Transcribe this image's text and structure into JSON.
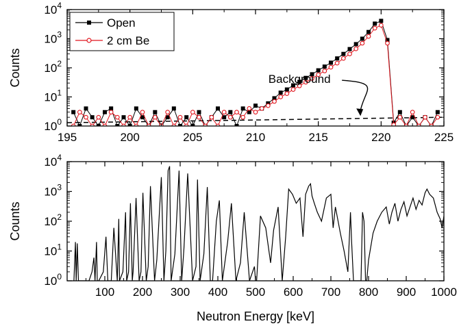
{
  "chart_data": [
    {
      "type": "line",
      "title": "",
      "xlabel": "",
      "ylabel": "Counts",
      "xlim": [
        195,
        225
      ],
      "ylim": [
        1,
        10000
      ],
      "yscale": "log",
      "x_ticks": [
        195,
        200,
        205,
        210,
        215,
        220,
        225
      ],
      "x_tick_labels": [
        "195",
        "200",
        "205",
        "210",
        "215",
        "220",
        "225"
      ],
      "y_ticks": [
        1,
        10,
        100,
        1000,
        10000
      ],
      "y_tick_labels": [
        {
          "base": "10",
          "exp": "0"
        },
        {
          "base": "10",
          "exp": "1"
        },
        {
          "base": "10",
          "exp": "2"
        },
        {
          "base": "10",
          "exp": "3"
        },
        {
          "base": "10",
          "exp": "4"
        }
      ],
      "legend": "top-left",
      "series": [
        {
          "name": "Open",
          "color": "#000000",
          "marker": "square-filled",
          "x": [
            195.5,
            196.0,
            196.5,
            197.0,
            197.5,
            198.0,
            198.5,
            199.0,
            199.5,
            200.0,
            200.5,
            201.0,
            201.5,
            202.0,
            202.5,
            203.0,
            203.5,
            204.0,
            204.5,
            205.0,
            205.5,
            206.0,
            206.5,
            207.0,
            207.5,
            208.0,
            208.5,
            209.0,
            209.5,
            210.0,
            210.5,
            211.0,
            211.5,
            212.0,
            212.5,
            213.0,
            213.5,
            214.0,
            214.5,
            215.0,
            215.5,
            216.0,
            216.5,
            217.0,
            217.5,
            218.0,
            218.5,
            219.0,
            219.5,
            220.0,
            220.5,
            221.0,
            221.5,
            222.0,
            222.5,
            223.0,
            223.5,
            224.0,
            224.5
          ],
          "y": [
            3,
            1,
            4,
            2,
            1,
            3,
            4,
            1,
            2,
            1,
            4,
            2,
            1,
            3,
            1,
            2,
            4,
            1,
            2,
            1,
            3,
            1,
            2,
            4,
            2,
            3,
            1,
            4,
            3,
            5,
            4,
            6,
            9,
            14,
            18,
            25,
            33,
            45,
            60,
            82,
            110,
            150,
            210,
            300,
            440,
            650,
            1000,
            1700,
            3300,
            4100,
            900,
            1.3,
            3,
            1,
            2,
            1,
            2,
            1,
            3
          ]
        },
        {
          "name": "2 cm Be",
          "color": "#e0141c",
          "marker": "circle-open",
          "x": [
            195.5,
            196.0,
            196.5,
            197.0,
            197.5,
            198.0,
            198.5,
            199.0,
            199.5,
            200.0,
            200.5,
            201.0,
            201.5,
            202.0,
            202.5,
            203.0,
            203.5,
            204.0,
            204.5,
            205.0,
            205.5,
            206.0,
            206.5,
            207.0,
            207.5,
            208.0,
            208.5,
            209.0,
            209.5,
            210.0,
            210.5,
            211.0,
            211.5,
            212.0,
            212.5,
            213.0,
            213.5,
            214.0,
            214.5,
            215.0,
            215.5,
            216.0,
            216.5,
            217.0,
            217.5,
            218.0,
            218.5,
            219.0,
            219.5,
            220.0,
            220.5,
            221.0,
            221.5,
            222.0,
            222.5,
            223.0,
            223.5,
            224.0,
            224.5
          ],
          "y": [
            1,
            3,
            2,
            1,
            2,
            1,
            3,
            2,
            1,
            2,
            1,
            3,
            1,
            2,
            1,
            3,
            1,
            2,
            1,
            3,
            2,
            1,
            2,
            1,
            3,
            2,
            3,
            2,
            4,
            3,
            4,
            5,
            7,
            10,
            13,
            18,
            24,
            32,
            43,
            58,
            78,
            105,
            145,
            210,
            300,
            450,
            700,
            1200,
            2300,
            2900,
            700,
            1.1,
            2,
            1,
            3,
            1,
            2,
            1,
            2
          ]
        }
      ],
      "annotations": [
        {
          "text": "Background",
          "x": 213.5,
          "y": 30
        }
      ],
      "background_line": {
        "x": [
          195,
          225
        ],
        "y": [
          1.3,
          2
        ]
      }
    },
    {
      "type": "line",
      "title": "",
      "xlabel": "Neutron Energy [keV]",
      "ylabel": "Counts",
      "xlim": [
        0,
        1000
      ],
      "ylim": [
        1,
        10000
      ],
      "yscale": "log",
      "x_ticks": [
        100,
        200,
        300,
        400,
        500,
        600,
        700,
        800,
        900,
        1000
      ],
      "x_tick_labels": [
        "100",
        "200",
        "300",
        "400",
        "500",
        "600",
        "700",
        "800",
        "900",
        "1000"
      ],
      "y_ticks": [
        1,
        10,
        100,
        1000,
        10000
      ],
      "y_tick_labels": [
        {
          "base": "10",
          "exp": "0"
        },
        {
          "base": "10",
          "exp": "1"
        },
        {
          "base": "10",
          "exp": "2"
        },
        {
          "base": "10",
          "exp": "3"
        },
        {
          "base": "10",
          "exp": "4"
        }
      ],
      "series": [
        {
          "color": "#000000",
          "x": [
            18,
            22,
            24,
            27,
            30,
            45,
            58,
            66,
            71,
            74,
            78,
            80,
            84,
            96,
            103,
            108,
            117,
            124,
            133,
            137,
            139,
            148,
            155,
            158,
            163,
            168,
            173,
            175,
            183,
            191,
            196,
            201,
            210,
            215,
            221,
            232,
            238,
            250,
            257,
            262,
            268,
            272,
            276,
            286,
            297,
            304,
            310,
            320,
            333,
            342,
            346,
            353,
            363,
            372,
            380,
            382,
            386,
            396,
            404,
            412,
            426,
            436,
            448,
            460,
            470,
            484,
            497,
            500,
            503,
            513,
            527,
            540,
            548,
            560,
            571,
            580,
            588,
            598,
            608,
            618,
            626,
            633,
            641,
            646,
            650,
            656,
            664,
            675,
            688,
            700,
            706,
            712,
            725,
            735,
            745,
            752,
            755,
            760,
            770,
            780,
            784,
            788,
            792,
            795,
            800,
            812,
            823,
            835,
            847,
            855,
            862,
            870,
            878,
            886,
            894,
            902,
            910,
            918,
            926,
            934,
            942,
            950,
            955,
            962,
            972,
            982,
            990,
            995,
            1000
          ],
          "y": [
            1,
            20,
            1,
            18,
            1,
            1,
            1,
            2,
            6,
            1,
            20,
            1,
            1,
            2,
            30,
            1,
            1,
            60,
            1,
            120,
            1,
            2,
            200,
            1,
            2,
            400,
            1,
            2,
            600,
            1,
            2,
            900,
            1,
            3,
            1500,
            1,
            5,
            3000,
            1,
            10,
            5000,
            7000,
            1,
            8,
            5000,
            1,
            12,
            4000,
            1,
            3,
            2500,
            1,
            8,
            1400,
            1,
            1,
            1,
            100,
            500,
            1,
            20,
            400,
            1,
            4,
            200,
            1,
            3,
            1,
            1,
            150,
            60,
            4,
            50,
            300,
            1,
            30,
            1200,
            800,
            400,
            600,
            30,
            800,
            1500,
            1800,
            700,
            400,
            200,
            100,
            600,
            800,
            60,
            300,
            40,
            10,
            2,
            200,
            20,
            1,
            1,
            1,
            200,
            100,
            1,
            1,
            5,
            40,
            100,
            200,
            300,
            80,
            200,
            400,
            100,
            250,
            450,
            150,
            300,
            600,
            250,
            500,
            350,
            900,
            1200,
            800,
            600,
            200,
            120,
            60,
            150
          ]
        }
      ]
    }
  ]
}
